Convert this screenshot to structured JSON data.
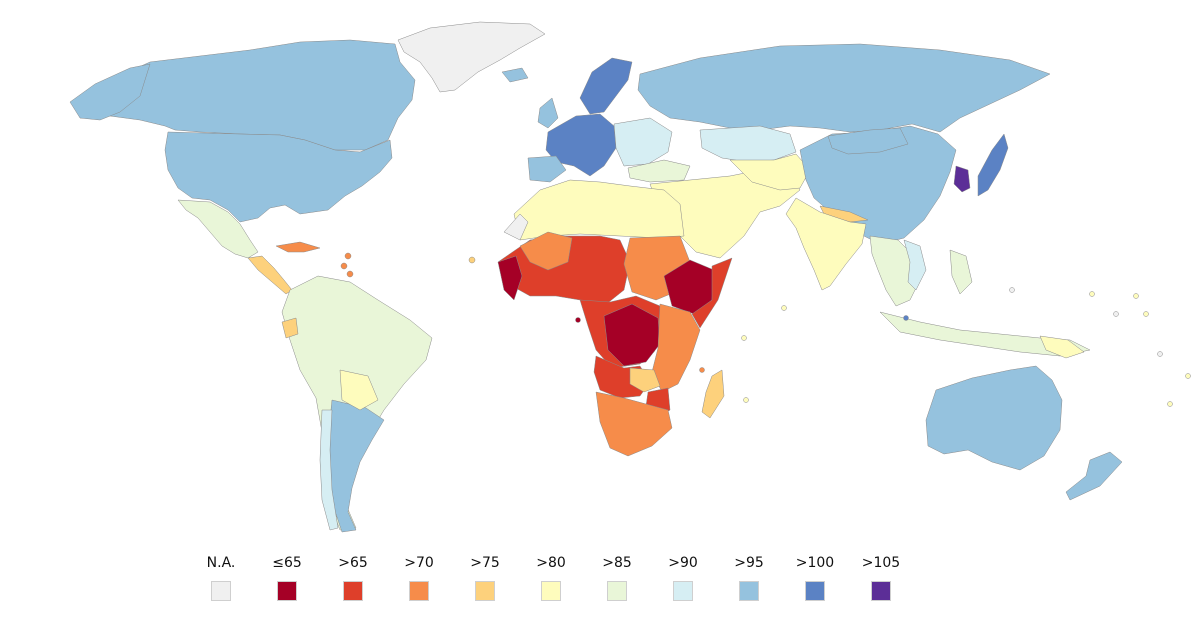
{
  "legend": {
    "items": [
      {
        "label": "N.A.",
        "color": "#f0f0f0"
      },
      {
        "label": "≤65",
        "color": "#a50026"
      },
      {
        "label": ">65",
        "color": "#de3f2a"
      },
      {
        "label": ">70",
        "color": "#f68c4a"
      },
      {
        "label": ">75",
        "color": "#fdd17c"
      },
      {
        "label": ">80",
        "color": "#fefcbd"
      },
      {
        "label": ">85",
        "color": "#e9f6d8"
      },
      {
        "label": ">90",
        "color": "#d6eef3"
      },
      {
        "label": ">95",
        "color": "#95c2de"
      },
      {
        "label": ">100",
        "color": "#5b82c4"
      },
      {
        "label": ">105",
        "color": "#5c2e97"
      }
    ]
  }
}
